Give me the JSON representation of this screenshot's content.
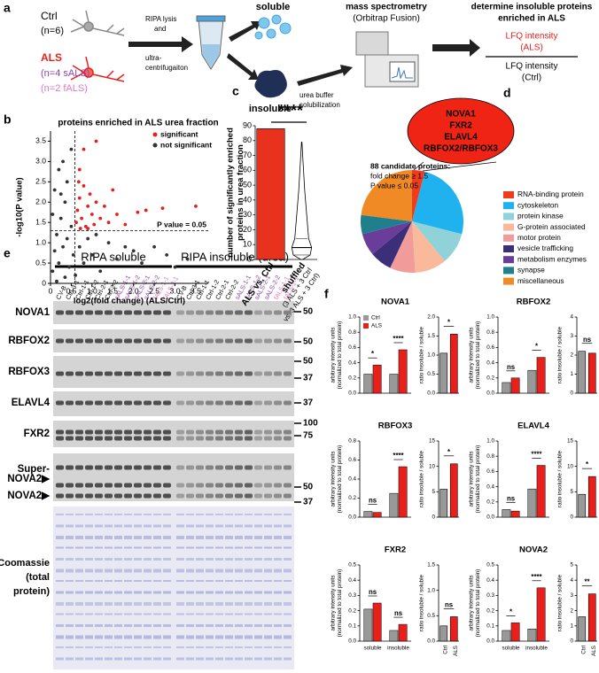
{
  "panel_labels": [
    "a",
    "b",
    "c",
    "d",
    "e",
    "f"
  ],
  "panel_a": {
    "ctrl": [
      "Ctrl",
      "(n=6)"
    ],
    "als": [
      "ALS",
      "(n=4 sALS)",
      "(n=2 fALS)"
    ],
    "step1": [
      "RIPA lysis",
      "and",
      "ultra-",
      "centrifugaiton"
    ],
    "soluble": "soluble",
    "insoluble": "insoluble",
    "step2": [
      "urea buffer",
      "solubilization"
    ],
    "ms": [
      "mass spectrometry",
      "(Orbitrap Fusion)"
    ],
    "goal": [
      "determine insoluble proteins",
      "enriched in ALS"
    ],
    "numerator": [
      "LFQ intensity",
      "(ALS)"
    ],
    "denominator": [
      "LFQ intensity",
      "(Ctrl)"
    ]
  },
  "panel_e": {
    "groups": [
      "RIPA soluble",
      "RIPA insoluble (urea)"
    ],
    "lanes": [
      "CV-B",
      "Ctrl-3-1",
      "Ctrl-1-1",
      "Ctrl-1-2",
      "Ctrl-2-1",
      "Ctrl-2-2",
      "sALS-1-1",
      "sALS-1-2",
      "sALS-2-1",
      "sALS-2-2",
      "fALS-1-1",
      "fALS-2-1"
    ],
    "lane_colors": [
      "#000000",
      "#000000",
      "#000000",
      "#000000",
      "#000000",
      "#000000",
      "#8e44ad",
      "#8e44ad",
      "#8e44ad",
      "#8e44ad",
      "#e377c2",
      "#e377c2"
    ],
    "blots": [
      {
        "label": [
          "NOVA1"
        ],
        "markers": [
          "50"
        ]
      },
      {
        "label": [
          "RBFOX2"
        ],
        "markers": [
          "50"
        ]
      },
      {
        "label": [
          "RBFOX3"
        ],
        "markers": [
          "50",
          "37"
        ]
      },
      {
        "label": [
          "ELAVL4"
        ],
        "markers": [
          "37"
        ]
      },
      {
        "label": [
          "FXR2"
        ],
        "markers": [
          "100",
          "75"
        ]
      },
      {
        "label": [
          "Super-",
          "NOVA2▶",
          "NOVA2▶"
        ],
        "markers": [
          "50",
          "37"
        ]
      },
      {
        "label": [
          "Coomassie",
          "(total",
          "protein)"
        ],
        "markers": []
      }
    ]
  },
  "chart_data": [
    {
      "type": "scatter",
      "title": "proteins enriched in ALS urea fraction",
      "xlabel": "log2(fold change) (ALS/Ctrl)",
      "ylabel": "-log10(P value)",
      "xlim": [
        0,
        3.8
      ],
      "ylim": [
        0,
        3.75
      ],
      "xticks": [
        0,
        0.5,
        {
          "value": 1,
          "label": "1.0"
        },
        1.5,
        {
          "value": 2,
          "label": "2.0"
        },
        2.5,
        {
          "value": 3,
          "label": "3.0"
        },
        3.5
      ],
      "yticks": [
        0,
        0.5,
        {
          "value": 1,
          "label": "1.0"
        },
        1.5,
        {
          "value": 2,
          "label": "2.0"
        },
        2.5,
        {
          "value": 3,
          "label": "3.0"
        },
        3.5
      ],
      "threshold_x": 0.585,
      "threshold_y": 1.3,
      "annotation": "P value = 0.05",
      "legend": "upper right",
      "series": [
        {
          "name": "significant",
          "color": "#e8201c",
          "x": [
            0.62,
            0.65,
            0.7,
            0.75,
            0.8,
            0.85,
            0.9,
            0.95,
            1.0,
            1.05,
            1.1,
            1.2,
            1.3,
            1.4,
            1.6,
            1.8,
            2.1,
            2.3,
            2.7,
            3.5,
            0.7,
            0.8,
            1.1,
            0.68,
            0.72,
            1.5,
            0.9
          ],
          "y": [
            1.5,
            1.8,
            2.1,
            1.6,
            2.4,
            1.4,
            1.9,
            2.2,
            1.7,
            1.45,
            2.0,
            1.6,
            1.9,
            1.5,
            1.7,
            1.45,
            1.75,
            1.8,
            1.85,
            1.9,
            2.8,
            3.3,
            3.5,
            2.5,
            1.35,
            2.3,
            1.35
          ]
        },
        {
          "name": "not significant",
          "color": "#333333",
          "x": [
            0.05,
            0.1,
            0.15,
            0.2,
            0.25,
            0.3,
            0.35,
            0.4,
            0.45,
            0.5,
            0.55,
            0.1,
            0.2,
            0.3,
            0.4,
            0.05,
            0.5,
            0.7,
            0.8,
            0.9,
            1.0,
            1.2,
            1.4,
            1.6,
            1.8,
            2.0,
            2.2,
            2.5,
            2.8,
            3.0,
            3.3,
            1.1,
            0.6,
            0.35,
            0.15,
            0.25
          ],
          "y": [
            0.3,
            0.8,
            1.2,
            0.5,
            1.6,
            0.9,
            2.0,
            1.1,
            0.4,
            1.4,
            0.7,
            2.3,
            2.8,
            3.0,
            2.5,
            1.7,
            3.3,
            0.9,
            0.5,
            1.1,
            0.7,
            0.3,
            1.0,
            0.6,
            0.9,
            0.8,
            0.5,
            0.9,
            0.7,
            0.4,
            0.6,
            1.2,
            0.2,
            0.15,
            0.05,
            2.2
          ]
        }
      ]
    },
    {
      "type": "bar",
      "title": "****",
      "ylabel": [
        "number of significantly enriched",
        "proteins in urea fraction"
      ],
      "categories": [
        "ALS vs. Ctrl",
        "shuffled"
      ],
      "category_note": [
        "(3 ALS + 3 Ctrl",
        "vs. 3 ALS + 3 Ctrl)"
      ],
      "values": [
        88,
        null
      ],
      "color": "#e8321e",
      "violin": {
        "min": 0,
        "q1": 3,
        "median": 8,
        "q3": 14,
        "max": 79
      },
      "ylim": [
        0,
        90
      ],
      "yticks": [
        0,
        10,
        20,
        30,
        40,
        50,
        60,
        70,
        80,
        90
      ]
    },
    {
      "type": "pie",
      "categories": [
        "RNA-binding protein",
        "cytoskeleton",
        "protein kinase",
        "G-protein associated",
        "motor protein",
        "vesicle trafficking",
        "metabolism enzymes",
        "synapse",
        "miscellaneous"
      ],
      "values": [
        4,
        25,
        10,
        10,
        8,
        7,
        7,
        6,
        23
      ],
      "colors": [
        "#f03c1e",
        "#1fb2ef",
        "#8fd2d8",
        "#f9b99a",
        "#f29b9b",
        "#3b2f7a",
        "#6a3d9a",
        "#1f7f8c",
        "#f08a24"
      ],
      "annotation": [
        "88 candidate proteins:",
        "fold change ≥ 1.5",
        "P value ≤ 0.05"
      ],
      "highlight": [
        "NOVA1",
        "FXR2",
        "ELAVL4",
        "RBFOX2/RBFOX3"
      ],
      "legend": "right"
    },
    {
      "type": "bar",
      "title": "NOVA1",
      "ylabel": [
        "arbitrary intensity units",
        "(normalized to total protein)"
      ],
      "categories": [
        null,
        null
      ],
      "legend": "upper left",
      "series": [
        {
          "name": "Ctrl",
          "color": "#999999",
          "values": [
            0.25,
            0.25
          ]
        },
        {
          "name": "ALS",
          "color": "#e8201c",
          "values": [
            0.37,
            0.57
          ]
        }
      ],
      "significance": [
        "*",
        "****"
      ],
      "ylim": [
        0,
        1
      ],
      "yticks": [
        {
          "value": 0,
          "label": "0.0"
        },
        0.2,
        0.4,
        0.6,
        0.8,
        {
          "value": 1,
          "label": "1.0"
        }
      ]
    },
    {
      "type": "bar",
      "ylabel": "ratio insoluble / soluble",
      "categories": [
        null,
        null
      ],
      "values": [
        1.05,
        1.55
      ],
      "colors": [
        "#999999",
        "#e8201c"
      ],
      "significance": "*",
      "ylim": [
        0,
        2
      ],
      "yticks": [
        {
          "value": 0,
          "label": "0.0"
        },
        0.5,
        {
          "value": 1,
          "label": "1.0"
        },
        1.5,
        {
          "value": 2,
          "label": "2.0"
        }
      ]
    },
    {
      "type": "bar",
      "title": "RBFOX2",
      "ylabel": [
        "arbitrary intensity units",
        "(normalized to total protein)"
      ],
      "categories": [
        null,
        null
      ],
      "series": [
        {
          "color": "#999999",
          "values": [
            0.14,
            0.3
          ]
        },
        {
          "color": "#e8201c",
          "values": [
            0.2,
            0.47
          ]
        }
      ],
      "significance": [
        "ns",
        "*"
      ],
      "ylim": [
        0,
        1
      ],
      "yticks": [
        {
          "value": 0,
          "label": "0.0"
        },
        0.2,
        0.4,
        0.6,
        0.8,
        {
          "value": 1,
          "label": "1.0"
        }
      ]
    },
    {
      "type": "bar",
      "ylabel": "ratio insoluble / soluble",
      "categories": [
        null,
        null
      ],
      "values": [
        2.2,
        2.1
      ],
      "colors": [
        "#999999",
        "#e8201c"
      ],
      "significance": "ns",
      "ylim": [
        0,
        4
      ],
      "yticks": [
        0,
        1,
        2,
        3,
        4
      ]
    },
    {
      "type": "bar",
      "title": "RBFOX3",
      "ylabel": [
        "arbitrary intensity units",
        "(normalized to total protein)"
      ],
      "categories": [
        null,
        null
      ],
      "series": [
        {
          "color": "#999999",
          "values": [
            0.06,
            0.25
          ]
        },
        {
          "color": "#e8201c",
          "values": [
            0.05,
            0.53
          ]
        }
      ],
      "significance": [
        "ns",
        "****"
      ],
      "ylim": [
        0,
        0.8
      ],
      "yticks": [
        {
          "value": 0,
          "label": "0.0"
        },
        0.2,
        0.4,
        0.6,
        0.8
      ]
    },
    {
      "type": "bar",
      "ylabel": "ratio insoluble / soluble",
      "categories": [
        null,
        null
      ],
      "values": [
        5.5,
        10.5
      ],
      "colors": [
        "#999999",
        "#e8201c"
      ],
      "significance": "*",
      "ylim": [
        0,
        15
      ],
      "yticks": [
        0,
        5,
        10,
        15
      ]
    },
    {
      "type": "bar",
      "title": "ELAVL4",
      "ylabel": [
        "arbitrary intensity units",
        "(normalized to total protein)"
      ],
      "categories": [
        null,
        null
      ],
      "series": [
        {
          "color": "#999999",
          "values": [
            0.1,
            0.37
          ]
        },
        {
          "color": "#e8201c",
          "values": [
            0.08,
            0.68
          ]
        }
      ],
      "significance": [
        "ns",
        "****"
      ],
      "ylim": [
        0,
        1
      ],
      "yticks": [
        {
          "value": 0,
          "label": "0.0"
        },
        0.2,
        0.4,
        0.6,
        0.8,
        {
          "value": 1,
          "label": "1.0"
        }
      ]
    },
    {
      "type": "bar",
      "ylabel": "ratio insoluble / soluble",
      "categories": [
        null,
        null
      ],
      "values": [
        4.5,
        8
      ],
      "colors": [
        "#999999",
        "#e8201c"
      ],
      "significance": "*",
      "ylim": [
        0,
        15
      ],
      "yticks": [
        0,
        5,
        10,
        15
      ]
    },
    {
      "type": "bar",
      "title": "FXR2",
      "ylabel": [
        "arbitrary intensity units",
        "(normalized to total protein)"
      ],
      "categories": [
        "soluble",
        "insoluble"
      ],
      "series": [
        {
          "color": "#999999",
          "values": [
            0.21,
            0.07
          ]
        },
        {
          "color": "#e8201c",
          "values": [
            0.25,
            0.11
          ]
        }
      ],
      "significance": [
        "ns",
        "ns"
      ],
      "ylim": [
        0,
        0.5
      ],
      "yticks": [
        {
          "value": 0,
          "label": "0.0"
        },
        0.1,
        0.2,
        0.3,
        0.4,
        0.5
      ]
    },
    {
      "type": "bar",
      "ylabel": "ratio insoluble / soluble",
      "categories": [
        "Ctrl",
        "ALS"
      ],
      "values": [
        0.3,
        0.48
      ],
      "colors": [
        "#999999",
        "#e8201c"
      ],
      "significance": "ns",
      "ylim": [
        0,
        1.5
      ],
      "yticks": [
        {
          "value": 0,
          "label": "0.0"
        },
        0.5,
        {
          "value": 1,
          "label": "1.0"
        },
        1.5
      ]
    },
    {
      "type": "bar",
      "title": "NOVA2",
      "ylabel": [
        "arbitrary intensity units",
        "(normalized to total protein)"
      ],
      "categories": [
        "soluble",
        "insoluble"
      ],
      "series": [
        {
          "color": "#999999",
          "values": [
            0.07,
            0.08
          ]
        },
        {
          "color": "#e8201c",
          "values": [
            0.12,
            0.35
          ]
        }
      ],
      "significance": [
        "*",
        "****"
      ],
      "ylim": [
        0,
        0.5
      ],
      "yticks": [
        {
          "value": 0,
          "label": "0.0"
        },
        0.1,
        0.2,
        0.3,
        0.4,
        0.5
      ]
    },
    {
      "type": "bar",
      "ylabel": "ratio insoluble / soluble",
      "categories": [
        "Ctrl",
        "ALS"
      ],
      "values": [
        1.6,
        3.1
      ],
      "colors": [
        "#999999",
        "#e8201c"
      ],
      "significance": "**",
      "ylim": [
        0,
        5
      ],
      "yticks": [
        0,
        1,
        2,
        3,
        4,
        5
      ]
    }
  ]
}
